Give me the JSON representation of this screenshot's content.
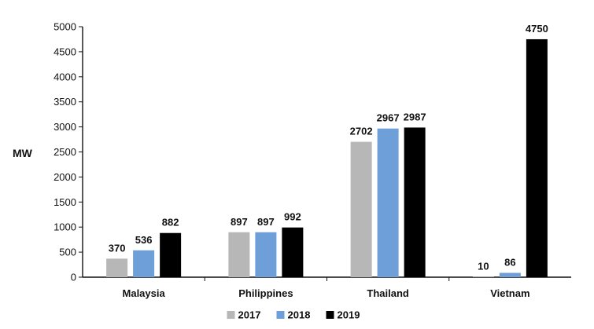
{
  "chart_data": {
    "type": "bar",
    "title": "",
    "xlabel": "",
    "ylabel": "MW",
    "categories": [
      "Malaysia",
      "Philippines",
      "Thailand",
      "Vietnam"
    ],
    "series": [
      {
        "name": "2017",
        "color": "#b7b7b7",
        "values": [
          370,
          897,
          2702,
          10
        ]
      },
      {
        "name": "2018",
        "color": "#6f9fd8",
        "values": [
          536,
          897,
          2967,
          86
        ]
      },
      {
        "name": "2019",
        "color": "#000000",
        "values": [
          882,
          992,
          2987,
          4750
        ]
      }
    ],
    "ylim": [
      0,
      5000
    ],
    "yticks": [
      0,
      500,
      1000,
      1500,
      2000,
      2500,
      3000,
      3500,
      4000,
      4500,
      5000
    ],
    "grid": false,
    "legend_position": "bottom-center"
  }
}
